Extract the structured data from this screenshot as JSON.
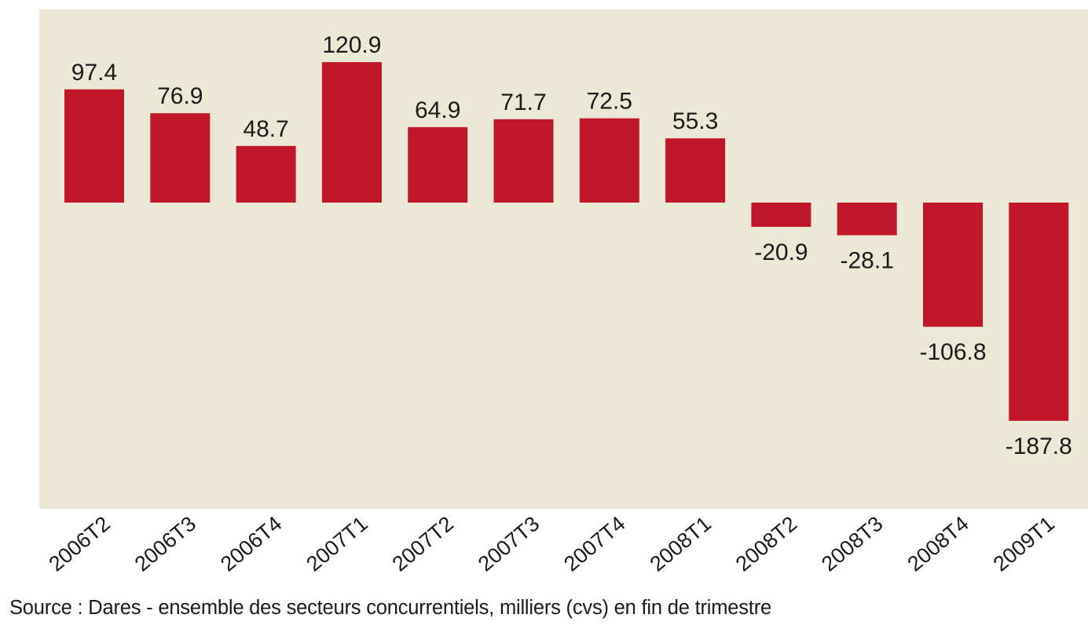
{
  "chart_data": {
    "type": "bar",
    "categories": [
      "2006T2",
      "2006T3",
      "2006T4",
      "2007T1",
      "2007T2",
      "2007T3",
      "2007T4",
      "2008T1",
      "2008T2",
      "2008T3",
      "2008T4",
      "2009T1"
    ],
    "values": [
      97.4,
      76.9,
      48.7,
      120.9,
      64.9,
      71.7,
      72.5,
      55.3,
      -20.9,
      -28.1,
      -106.8,
      -187.8
    ],
    "value_labels": [
      "97.4",
      "76.9",
      "48.7",
      "120.9",
      "64.9",
      "71.7",
      "72.5",
      "55.3",
      "-20.9",
      "-28.1",
      "-106.8",
      "-187.8"
    ],
    "ylim": [
      -260,
      165
    ],
    "grid": false,
    "colors": {
      "bar": "#c0182a",
      "background": "#ebe8d6"
    }
  },
  "source_note": "Source : Dares - ensemble des secteurs concurrentiels, milliers (cvs) en fin de trimestre"
}
